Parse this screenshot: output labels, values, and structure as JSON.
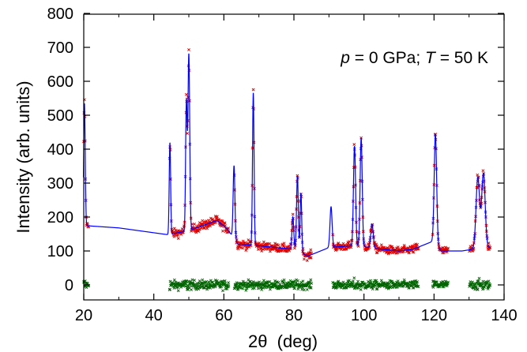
{
  "chart_data": {
    "type": "scatter",
    "title": "",
    "annotation": {
      "p_symbol": "p",
      "p_value": " = 0 GPa; ",
      "T_symbol": "T",
      "T_value": " = 50 K"
    },
    "xlabel": {
      "symbol": "2θ",
      "unit": "  (deg)"
    },
    "ylabel": "Intensity (arb. units)",
    "xlim": [
      20,
      140
    ],
    "ylim": [
      -50,
      800
    ],
    "x_ticks": [
      "20",
      "40",
      "60",
      "80",
      "100",
      "120",
      "140"
    ],
    "x_tick_values": [
      20,
      40,
      60,
      80,
      100,
      120,
      140
    ],
    "y_ticks": [
      "0",
      "100",
      "200",
      "300",
      "400",
      "500",
      "600",
      "700",
      "800"
    ],
    "y_tick_values": [
      0,
      100,
      200,
      300,
      400,
      500,
      600,
      700,
      800
    ],
    "excluded_regions": [
      [
        21.5,
        44.5
      ],
      [
        61.5,
        63
      ],
      [
        85,
        91
      ],
      [
        115.5,
        119.5
      ],
      [
        124,
        130
      ]
    ],
    "background": [
      [
        20,
        175
      ],
      [
        30,
        168
      ],
      [
        44,
        148
      ],
      [
        50,
        160
      ],
      [
        54,
        175
      ],
      [
        58,
        190
      ],
      [
        61,
        165
      ],
      [
        64,
        120
      ],
      [
        70,
        115
      ],
      [
        75,
        110
      ],
      [
        80,
        105
      ],
      [
        84,
        85
      ],
      [
        90,
        110
      ],
      [
        96,
        115
      ],
      [
        100,
        112
      ],
      [
        105,
        105
      ],
      [
        110,
        100
      ],
      [
        114,
        105
      ],
      [
        120,
        130
      ],
      [
        122,
        100
      ],
      [
        128,
        100
      ],
      [
        131,
        105
      ],
      [
        136,
        110
      ]
    ],
    "peaks": [
      {
        "center": 20.2,
        "height": 360,
        "width": 0.22
      },
      {
        "center": 44.6,
        "height": 270,
        "width": 0.2
      },
      {
        "center": 49.3,
        "height": 380,
        "width": 0.22
      },
      {
        "center": 50.0,
        "height": 520,
        "width": 0.25
      },
      {
        "center": 62.9,
        "height": 215,
        "width": 0.25
      },
      {
        "center": 68.4,
        "height": 450,
        "width": 0.22
      },
      {
        "center": 79.7,
        "height": 95,
        "width": 0.25
      },
      {
        "center": 81.0,
        "height": 220,
        "width": 0.25
      },
      {
        "center": 82.0,
        "height": 175,
        "width": 0.22
      },
      {
        "center": 90.6,
        "height": 120,
        "width": 0.3
      },
      {
        "center": 97.3,
        "height": 295,
        "width": 0.3
      },
      {
        "center": 99.2,
        "height": 320,
        "width": 0.3
      },
      {
        "center": 102.3,
        "height": 70,
        "width": 0.35
      },
      {
        "center": 120.4,
        "height": 320,
        "width": 0.35
      },
      {
        "center": 132.5,
        "height": 210,
        "width": 0.5
      },
      {
        "center": 134.1,
        "height": 220,
        "width": 0.5
      }
    ],
    "series": [
      {
        "name": "",
        "style": "observed-markers",
        "color": "#e00000"
      },
      {
        "name": "",
        "style": "calculated-line",
        "color": "#0000ff"
      },
      {
        "name": "",
        "style": "difference-markers",
        "color": "#006400"
      }
    ],
    "grid": false
  }
}
